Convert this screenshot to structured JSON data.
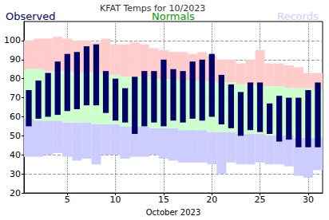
{
  "chart_data": {
    "type": "floating_bar",
    "title": "KFAT Temps for 10/2023",
    "xlabel": "October 2023",
    "x": [
      1,
      2,
      3,
      4,
      5,
      6,
      7,
      8,
      9,
      10,
      11,
      12,
      13,
      14,
      15,
      16,
      17,
      18,
      19,
      20,
      21,
      22,
      23,
      24,
      25,
      26,
      27,
      28,
      29,
      30,
      31
    ],
    "xlim": [
      0.5,
      31.5
    ],
    "xticks": [
      5,
      10,
      15,
      20,
      25,
      30
    ],
    "ylim": [
      20,
      110
    ],
    "yticks": [
      20,
      30,
      40,
      50,
      60,
      70,
      80,
      90,
      100
    ],
    "grid": true,
    "series": [
      {
        "name": "Observed",
        "color": "#000066",
        "high": [
          74,
          79,
          83,
          89,
          93,
          94,
          97,
          98,
          84,
          80,
          75,
          81,
          84,
          84,
          90,
          85,
          84,
          89,
          90,
          93,
          82,
          77,
          73,
          78,
          78,
          67,
          71,
          70,
          70,
          74,
          78
        ],
        "low": [
          55,
          59,
          60,
          61,
          63,
          64,
          66,
          66,
          62,
          58,
          57,
          51,
          55,
          57,
          55,
          58,
          57,
          59,
          58,
          60,
          56,
          54,
          50,
          53,
          52,
          51,
          47,
          48,
          44,
          44,
          44
        ]
      },
      {
        "name": "Normals",
        "color": "#00a000",
        "high": [
          85,
          85,
          84,
          84,
          84,
          83,
          83,
          83,
          82,
          82,
          81,
          81,
          81,
          80,
          80,
          80,
          79,
          79,
          79,
          78,
          78,
          78,
          77,
          77,
          76,
          76,
          76,
          75,
          75,
          75,
          74
        ],
        "low": [
          59,
          58,
          58,
          58,
          57,
          57,
          57,
          56,
          56,
          56,
          55,
          55,
          55,
          54,
          54,
          54,
          53,
          53,
          53,
          52,
          52,
          52,
          51,
          51,
          51,
          50,
          50,
          50,
          49,
          49,
          49
        ]
      },
      {
        "name": "Records",
        "color": "#ccccff",
        "high": [
          100,
          101,
          101,
          102,
          101,
          100,
          100,
          99,
          101,
          98,
          98,
          99,
          98,
          96,
          95,
          94,
          94,
          93,
          94,
          92,
          90,
          90,
          88,
          90,
          95,
          88,
          88,
          87,
          86,
          83,
          83
        ],
        "low": [
          39,
          39,
          40,
          41,
          39,
          37,
          38,
          35,
          40,
          40,
          38,
          39,
          39,
          40,
          38,
          37,
          36,
          36,
          36,
          35,
          30,
          36,
          35,
          35,
          36,
          35,
          35,
          34,
          29,
          28,
          32
        ]
      }
    ]
  }
}
